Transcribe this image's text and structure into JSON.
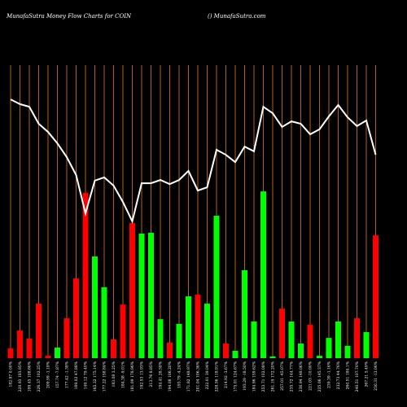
{
  "chart_data": {
    "type": "bar",
    "title": "MunafaSutra  Money Flow  Charts for COIN",
    "subtitle": "() MunafaSutra.com",
    "categories": [
      "182.97 0.00%",
      "220.93 183.95%",
      "199.45 108.66%",
      "226.37 102.25%",
      "209.99 -1.18%",
      "157.74 -7.87%",
      "177.42 -1.38%",
      "169.02 47.88%",
      "149.12 79.40%",
      "165.32 175.14%",
      "177.22 158.84%",
      "183.08 3.25%",
      "184.38 -9.01%",
      "181.09 178.96%",
      "192.53 13.93%",
      "213.76 8.85%",
      "194.41 28.58%",
      "194.08 106.20%",
      "193.79 -4.24%",
      "171.82 148.97%",
      "201.04 106.36%",
      "222.01 39.04%",
      "228.56 118.91%",
      "214.92 -3.67%",
      "175.01 124.67%",
      "193.29 -18.50%",
      "184.96 159.62%",
      "253.71 102.08%",
      "261.19 172.20%",
      "257.01 -45.07%",
      "235.72 144.77%",
      "236.94 148.06%",
      "221.03 -10.00%",
      "235.06 145.37%",
      "239.39 -1.16%",
      "232.73 44.76%",
      "260.51 184.1%",
      "240.51 107.70%",
      "267.21 5.49%",
      "230.31 -13.06%"
    ],
    "values": [
      3.3,
      9.4,
      6.7,
      18.6,
      0.8,
      3.6,
      13.6,
      27.2,
      56.4,
      34.7,
      24.2,
      6.4,
      18.3,
      46.1,
      42.5,
      42.8,
      13.3,
      5.3,
      11.7,
      21.1,
      21.7,
      18.6,
      48.6,
      5,
      2.5,
      30,
      12.5,
      56.9,
      0.6,
      16.9,
      12.5,
      5,
      11.4,
      0.8,
      6.9,
      12.5,
      4.2,
      13.6,
      8.9,
      41.9
    ],
    "colors": [
      "#ff0000",
      "#ff0000",
      "#ff0000",
      "#ff0000",
      "#ff0000",
      "#00ff00",
      "#ff0000",
      "#ff0000",
      "#ff0000",
      "#00ff00",
      "#00ff00",
      "#ff0000",
      "#ff0000",
      "#ff0000",
      "#00ff00",
      "#00ff00",
      "#00ff00",
      "#ff0000",
      "#00ff00",
      "#00ff00",
      "#ff0000",
      "#00ff00",
      "#00ff00",
      "#ff0000",
      "#00ff00",
      "#00ff00",
      "#00ff00",
      "#00ff00",
      "#00ff00",
      "#ff0000",
      "#00ff00",
      "#00ff00",
      "#ff0000",
      "#00ff00",
      "#00ff00",
      "#00ff00",
      "#00ff00",
      "#ff0000",
      "#00ff00",
      "#ff0000"
    ],
    "line_values": [
      88.3,
      86.7,
      85.8,
      80,
      77.2,
      73.3,
      68.6,
      62.5,
      49.4,
      60.6,
      61.7,
      58.9,
      53.3,
      46.7,
      59.7,
      59.7,
      60.8,
      59.4,
      60.8,
      63.9,
      57.2,
      58.3,
      71.1,
      69.4,
      66.9,
      72.2,
      70.6,
      85.8,
      83.6,
      78.9,
      80.8,
      80,
      76.4,
      78.1,
      82.5,
      86.4,
      82.2,
      79.2,
      81.1,
      69.4
    ],
    "line_color": "#ffffff",
    "grid_color": "#b8600b",
    "ylim": [
      0,
      100
    ]
  }
}
